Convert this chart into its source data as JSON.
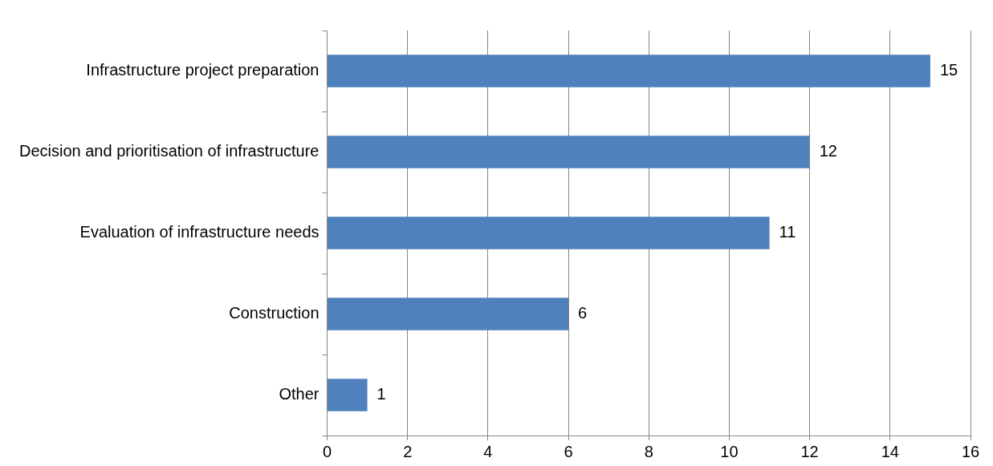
{
  "chart_data": {
    "type": "bar",
    "orientation": "horizontal",
    "categories": [
      "Infrastructure project preparation",
      "Decision and prioritisation of infrastructure",
      "Evaluation of infrastructure needs",
      "Construction",
      "Other"
    ],
    "values": [
      15,
      12,
      11,
      6,
      1
    ],
    "color": "#4f81bd",
    "xlim": [
      0,
      16
    ],
    "xticks": [
      0,
      2,
      4,
      6,
      8,
      10,
      12,
      14,
      16
    ],
    "grid": "x",
    "data_labels": true,
    "legend": false
  }
}
